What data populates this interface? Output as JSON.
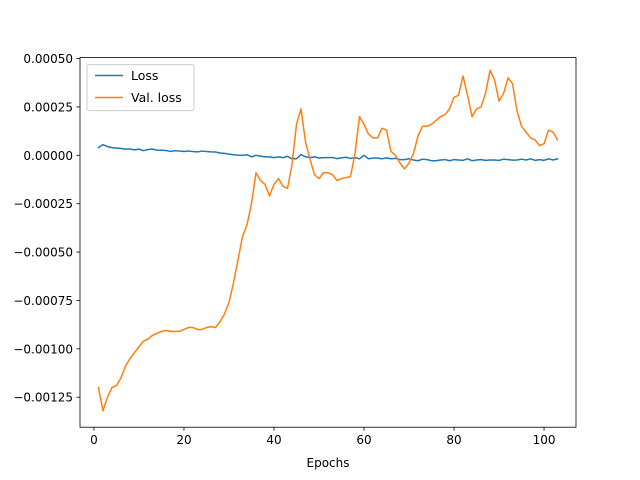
{
  "chart_data": {
    "type": "line",
    "title": "",
    "xlabel": "Epochs",
    "ylabel": "",
    "xlim": [
      -3.1,
      107.1
    ],
    "ylim": [
      -0.001405,
      0.000505
    ],
    "xticks": [
      0,
      20,
      40,
      60,
      80,
      100
    ],
    "xtick_labels": [
      "0",
      "20",
      "40",
      "60",
      "80",
      "100"
    ],
    "yticks": [
      0.0005,
      0.00025,
      0.0,
      -0.00025,
      -0.0005,
      -0.00075,
      -0.001,
      -0.00125
    ],
    "ytick_labels": [
      "0.00050",
      "0.00025",
      "0.00000",
      "−0.00025",
      "−0.00050",
      "−0.00075",
      "−0.00100",
      "−0.00125"
    ],
    "grid": false,
    "legend": "top-left",
    "series": [
      {
        "name": "Loss",
        "color": "#1f77b4",
        "x": [
          1,
          2,
          3,
          4,
          5,
          6,
          7,
          8,
          9,
          10,
          11,
          12,
          13,
          14,
          15,
          16,
          17,
          18,
          19,
          20,
          21,
          22,
          23,
          24,
          25,
          26,
          27,
          28,
          29,
          30,
          31,
          32,
          33,
          34,
          35,
          36,
          37,
          38,
          39,
          40,
          41,
          42,
          43,
          44,
          45,
          46,
          47,
          48,
          49,
          50,
          51,
          52,
          53,
          54,
          55,
          56,
          57,
          58,
          59,
          60,
          61,
          62,
          63,
          64,
          65,
          66,
          67,
          68,
          69,
          70,
          71,
          72,
          73,
          74,
          75,
          76,
          77,
          78,
          79,
          80,
          81,
          82,
          83,
          84,
          85,
          86,
          87,
          88,
          89,
          90,
          91,
          92,
          93,
          94,
          95,
          96,
          97,
          98,
          99,
          100,
          101,
          102,
          103
        ],
        "values": [
          4e-05,
          5.5e-05,
          4.5e-05,
          4e-05,
          3.8e-05,
          3.5e-05,
          3.2e-05,
          3.3e-05,
          2.8e-05,
          3.2e-05,
          2.4e-05,
          3e-05,
          3.2e-05,
          2.7e-05,
          2.6e-05,
          2.5e-05,
          2e-05,
          2.4e-05,
          2.2e-05,
          2e-05,
          2.2e-05,
          2e-05,
          1.8e-05,
          2.2e-05,
          2e-05,
          1.8e-05,
          1.7e-05,
          1.2e-05,
          1e-05,
          6e-06,
          3e-06,
          1e-06,
          0.0,
          3e-06,
          -8e-06,
          0.0,
          -4e-06,
          -8e-06,
          -8e-06,
          -1.2e-05,
          -8e-06,
          -1.2e-05,
          -5e-06,
          -1.8e-05,
          -1.8e-05,
          4e-06,
          -8e-06,
          -1.2e-05,
          -8e-06,
          -1.4e-05,
          -1.2e-05,
          -1.2e-05,
          -1.1e-05,
          -1.7e-05,
          -1.3e-05,
          -1e-05,
          -1.6e-05,
          -1.2e-05,
          -1.8e-05,
          0.0,
          -1.8e-05,
          -1.4e-05,
          -1.4e-05,
          -1.8e-05,
          -1.3e-05,
          -1.8e-05,
          -1.6e-05,
          -2.2e-05,
          -2.2e-05,
          -1.8e-05,
          -2.4e-05,
          -2.8e-05,
          -2e-05,
          -2.2e-05,
          -2.8e-05,
          -2.8e-05,
          -2.4e-05,
          -2.2e-05,
          -2.8e-05,
          -2.2e-05,
          -2.4e-05,
          -2.6e-05,
          -1.8e-05,
          -2.8e-05,
          -2.4e-05,
          -2.2e-05,
          -2.6e-05,
          -2.4e-05,
          -2.4e-05,
          -2.6e-05,
          -2e-05,
          -2.2e-05,
          -2.5e-05,
          -2.4e-05,
          -2e-05,
          -2.4e-05,
          -1.8e-05,
          -2.6e-05,
          -2.2e-05,
          -2.6e-05,
          -1.8e-05,
          -2.4e-05,
          -1.8e-05
        ]
      },
      {
        "name": "Val. loss",
        "color": "#ff7f0e",
        "x": [
          1,
          2,
          3,
          4,
          5,
          6,
          7,
          8,
          9,
          10,
          11,
          12,
          13,
          14,
          15,
          16,
          17,
          18,
          19,
          20,
          21,
          22,
          23,
          24,
          25,
          26,
          27,
          28,
          29,
          30,
          31,
          32,
          33,
          34,
          35,
          36,
          37,
          38,
          39,
          40,
          41,
          42,
          43,
          44,
          45,
          46,
          47,
          48,
          49,
          50,
          51,
          52,
          53,
          54,
          55,
          56,
          57,
          58,
          59,
          60,
          61,
          62,
          63,
          64,
          65,
          66,
          67,
          68,
          69,
          70,
          71,
          72,
          73,
          74,
          75,
          76,
          77,
          78,
          79,
          80,
          81,
          82,
          83,
          84,
          85,
          86,
          87,
          88,
          89,
          90,
          91,
          92,
          93,
          94,
          95,
          96,
          97,
          98,
          99,
          100,
          101,
          102,
          103
        ],
        "values": [
          -0.0012,
          -0.00132,
          -0.00125,
          -0.0012,
          -0.00119,
          -0.00115,
          -0.00109,
          -0.00105,
          -0.00102,
          -0.00099,
          -0.00096,
          -0.00095,
          -0.00093,
          -0.00092,
          -0.00091,
          -0.000905,
          -0.00091,
          -0.00091,
          -0.00091,
          -0.0009,
          -0.00089,
          -0.00089,
          -0.0009,
          -0.0009,
          -0.00089,
          -0.000885,
          -0.00089,
          -0.00086,
          -0.00082,
          -0.00076,
          -0.00066,
          -0.00054,
          -0.00042,
          -0.00036,
          -0.00025,
          -9e-05,
          -0.00013,
          -0.00015,
          -0.00021,
          -0.00015,
          -0.00012,
          -0.00016,
          -0.00017,
          -5e-05,
          0.00016,
          0.00024,
          7e-05,
          -2e-05,
          -0.0001,
          -0.00012,
          -9e-05,
          -9e-05,
          -0.0001,
          -0.00013,
          -0.00012,
          -0.000115,
          -0.00011,
          1e-05,
          0.0002,
          0.00016,
          0.00011,
          9e-05,
          9e-05,
          0.00014,
          0.00013,
          2e-05,
          0.0,
          -4e-05,
          -7e-05,
          -4e-05,
          1e-05,
          0.0001,
          0.00015,
          0.00015,
          0.00016,
          0.00018,
          0.0002,
          0.00021,
          0.00024,
          0.0003,
          0.00031,
          0.00041,
          0.00031,
          0.0002,
          0.00024,
          0.00025,
          0.00032,
          0.00044,
          0.00039,
          0.00028,
          0.00032,
          0.0004,
          0.00037,
          0.00023,
          0.00015,
          0.00012,
          9e-05,
          8e-05,
          5e-05,
          6e-05,
          0.00013,
          0.00012,
          8e-05
        ]
      }
    ]
  }
}
